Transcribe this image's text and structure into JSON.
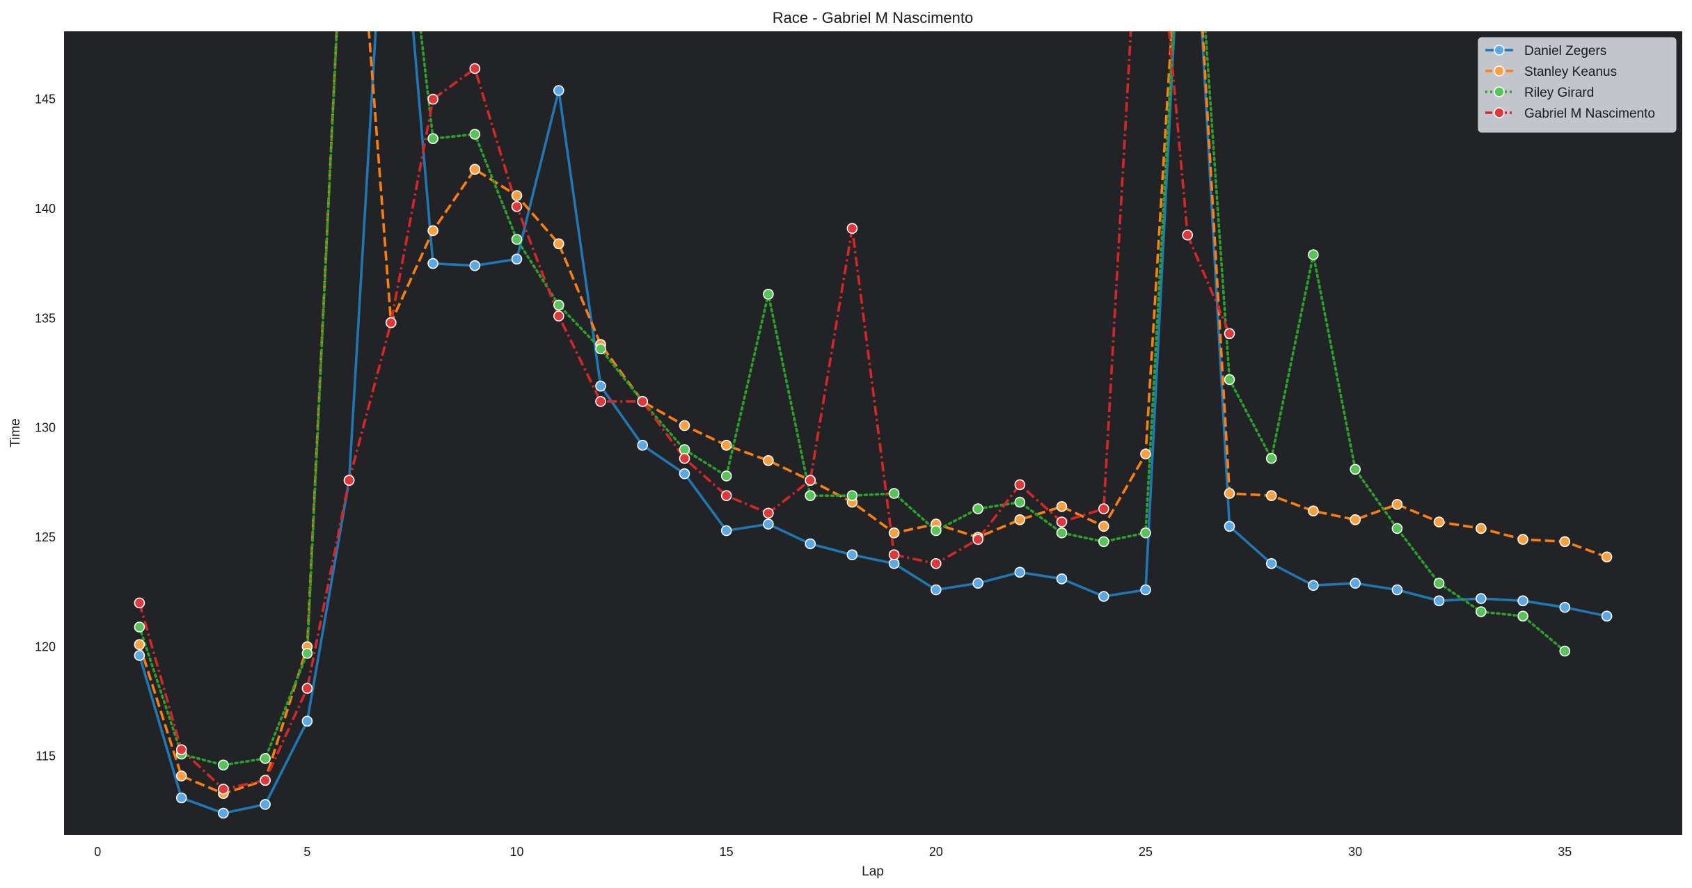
{
  "chart_data": {
    "type": "line",
    "title": "Race - Gabriel M Nascimento",
    "xlabel": "Lap",
    "ylabel": "Time",
    "xlim": [
      -0.8,
      37.8
    ],
    "ylim": [
      111.4,
      148.1
    ],
    "xticks": [
      0,
      5,
      10,
      15,
      20,
      25,
      30,
      35
    ],
    "yticks": [
      115,
      120,
      125,
      130,
      135,
      140,
      145
    ],
    "grid": false,
    "plot_background": "#212326",
    "legend_position": "top-right",
    "series": [
      {
        "name": "Daniel Zegers",
        "color": "#1f77b4",
        "marker_fill": "#5aa9e6",
        "dash": "solid",
        "x": [
          1,
          2,
          3,
          4,
          5,
          6,
          7,
          8,
          9,
          10,
          11,
          12,
          13,
          14,
          15,
          16,
          17,
          18,
          19,
          20,
          21,
          22,
          23,
          24,
          25,
          26,
          27,
          28,
          29,
          30,
          31,
          32,
          33,
          34,
          35,
          36
        ],
        "y": [
          119.6,
          113.1,
          112.4,
          112.8,
          116.6,
          127.6,
          160.0,
          137.5,
          137.4,
          137.7,
          145.4,
          131.9,
          129.2,
          127.9,
          125.3,
          125.6,
          124.7,
          124.2,
          123.8,
          122.6,
          122.9,
          123.4,
          123.1,
          122.3,
          122.6,
          160.0,
          125.5,
          123.8,
          122.8,
          122.9,
          122.6,
          122.1,
          122.2,
          122.1,
          121.8,
          121.4
        ]
      },
      {
        "name": "Stanley Keanus",
        "color": "#ff7f0e",
        "marker_fill": "#ffa040",
        "dash": "dashed",
        "x": [
          1,
          2,
          3,
          4,
          5,
          6,
          7,
          8,
          9,
          10,
          11,
          12,
          13,
          14,
          15,
          16,
          17,
          18,
          19,
          20,
          21,
          22,
          23,
          24,
          25,
          26,
          27,
          28,
          29,
          30,
          31,
          32,
          33,
          34,
          35,
          36
        ],
        "y": [
          120.1,
          114.1,
          113.3,
          113.9,
          120.0,
          160.0,
          134.8,
          139.0,
          141.8,
          140.6,
          138.4,
          133.8,
          131.2,
          130.1,
          129.2,
          128.5,
          127.6,
          126.6,
          125.2,
          125.6,
          125.0,
          125.8,
          126.4,
          125.5,
          128.8,
          160.0,
          127.0,
          126.9,
          126.2,
          125.8,
          126.5,
          125.7,
          125.4,
          124.9,
          124.8,
          124.1
        ]
      },
      {
        "name": "Riley Girard",
        "color": "#2ca02c",
        "marker_fill": "#56c456",
        "dash": "dotted",
        "x": [
          1,
          2,
          3,
          4,
          5,
          6,
          7,
          8,
          9,
          10,
          11,
          12,
          13,
          14,
          15,
          16,
          17,
          18,
          19,
          20,
          21,
          22,
          23,
          24,
          25,
          26,
          27,
          28,
          29,
          30,
          31,
          32,
          33,
          34,
          35
        ],
        "y": [
          120.9,
          115.1,
          114.6,
          114.9,
          119.7,
          160.0,
          160.0,
          143.2,
          143.4,
          138.6,
          135.6,
          133.6,
          131.2,
          129.0,
          127.8,
          136.1,
          126.9,
          126.9,
          127.0,
          125.3,
          126.3,
          126.6,
          125.2,
          124.8,
          125.2,
          160.0,
          132.2,
          128.6,
          137.9,
          128.1,
          125.4,
          122.9,
          121.6,
          121.4,
          119.8
        ]
      },
      {
        "name": "Gabriel M Nascimento",
        "color": "#d62728",
        "marker_fill": "#e03838",
        "dash": "dashdot",
        "x": [
          1,
          2,
          3,
          4,
          5,
          6,
          7,
          8,
          9,
          10,
          11,
          12,
          13,
          14,
          15,
          16,
          17,
          18,
          19,
          20,
          21,
          22,
          23,
          24,
          25,
          26,
          27
        ],
        "y": [
          122.0,
          115.3,
          113.5,
          113.9,
          118.1,
          127.6,
          134.8,
          145.0,
          146.4,
          140.1,
          135.1,
          131.2,
          131.2,
          128.6,
          126.9,
          126.1,
          127.6,
          139.1,
          124.2,
          123.8,
          124.9,
          127.4,
          125.7,
          126.3,
          160.0,
          138.8,
          134.3
        ]
      }
    ]
  }
}
